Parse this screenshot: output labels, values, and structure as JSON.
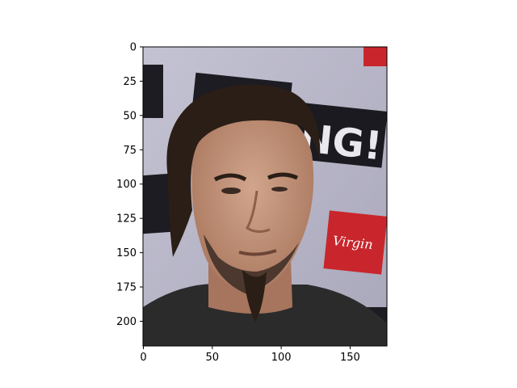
{
  "chart_data": {
    "type": "image",
    "title": "",
    "xlabel": "",
    "ylabel": "",
    "image": {
      "description_icon": "photo-portrait-man-dark-slicked-hair-goatee",
      "background_color": "#b9b7c9",
      "hair_color": "#2a1e16",
      "skin_color": "#c2937a",
      "shirt_color": "#2b2b2b",
      "logo_color": "#c8262c"
    },
    "backdrop_text": [
      "NG!",
      "Virgin"
    ],
    "xlim": [
      0,
      177
    ],
    "ylim": [
      218,
      0
    ],
    "x_ticks": [
      {
        "value": 0,
        "label": "0"
      },
      {
        "value": 50,
        "label": "50"
      },
      {
        "value": 100,
        "label": "100"
      },
      {
        "value": 150,
        "label": "150"
      }
    ],
    "y_ticks": [
      {
        "value": 0,
        "label": "0"
      },
      {
        "value": 25,
        "label": "25"
      },
      {
        "value": 50,
        "label": "50"
      },
      {
        "value": 75,
        "label": "75"
      },
      {
        "value": 100,
        "label": "100"
      },
      {
        "value": 125,
        "label": "125"
      },
      {
        "value": 150,
        "label": "150"
      },
      {
        "value": 175,
        "label": "175"
      },
      {
        "value": 200,
        "label": "200"
      }
    ],
    "grid": false
  }
}
